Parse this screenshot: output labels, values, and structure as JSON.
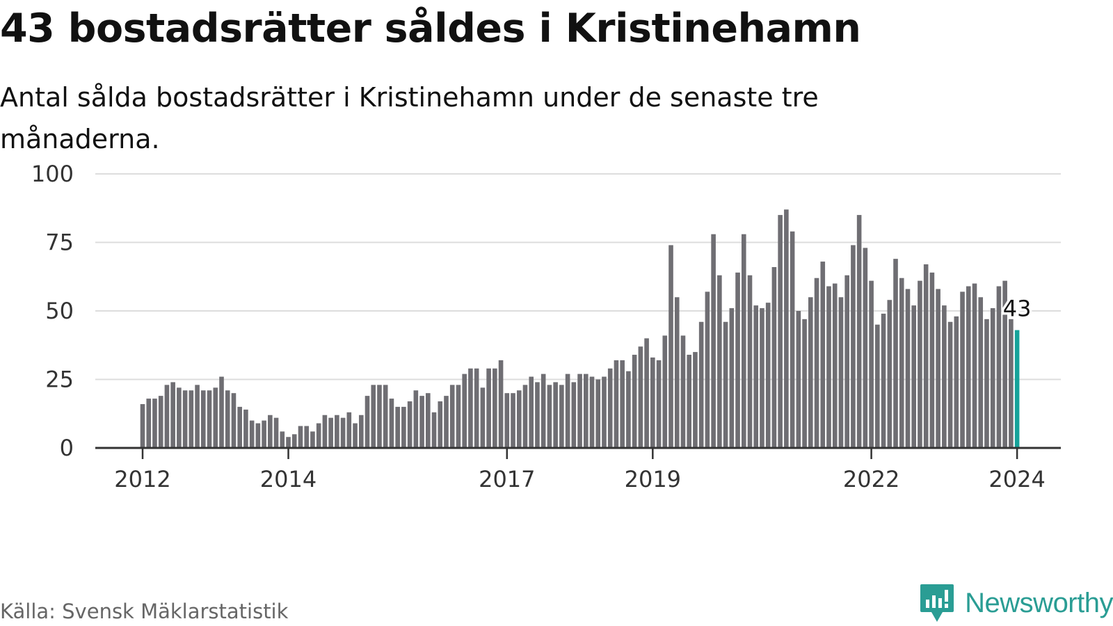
{
  "title": "43 bostadsrätter såldes i Kristinehamn",
  "subtitle": "Antal sålda bostadsrätter i Kristinehamn under de senaste tre månaderna.",
  "source": "Källa: Svensk Mäklarstatistik",
  "brand": {
    "name": "Newsworthy",
    "icon": "newsworthy-logo-icon"
  },
  "colors": {
    "bar": "#6f6e73",
    "highlight": "#16a39a",
    "grid": "#dddddd",
    "axis": "#333333",
    "brand": "#2a9d94"
  },
  "chart_data": {
    "type": "bar",
    "title": "43 bostadsrätter såldes i Kristinehamn",
    "xlabel": "",
    "ylabel": "",
    "ylim": [
      0,
      100
    ],
    "yticks": [
      0,
      25,
      50,
      75,
      100
    ],
    "xticks": [
      "2012",
      "2014",
      "2017",
      "2019",
      "2022",
      "2024"
    ],
    "xtick_index": [
      0,
      24,
      60,
      84,
      120,
      144
    ],
    "highlight": {
      "index": 144,
      "label": "43"
    },
    "values": [
      16,
      18,
      18,
      19,
      23,
      24,
      22,
      21,
      21,
      23,
      21,
      21,
      22,
      26,
      21,
      20,
      15,
      14,
      10,
      9,
      10,
      12,
      11,
      6,
      4,
      5,
      8,
      8,
      6,
      9,
      12,
      11,
      12,
      11,
      13,
      9,
      12,
      19,
      23,
      23,
      23,
      18,
      15,
      15,
      17,
      21,
      19,
      20,
      13,
      17,
      19,
      23,
      23,
      27,
      29,
      29,
      22,
      29,
      29,
      32,
      20,
      20,
      21,
      23,
      26,
      24,
      27,
      23,
      24,
      23,
      27,
      24,
      27,
      27,
      26,
      25,
      26,
      29,
      32,
      32,
      28,
      34,
      37,
      40,
      33,
      32,
      41,
      74,
      55,
      41,
      34,
      35,
      46,
      57,
      78,
      63,
      46,
      51,
      64,
      78,
      63,
      52,
      51,
      53,
      66,
      85,
      87,
      79,
      50,
      47,
      55,
      62,
      68,
      59,
      60,
      55,
      63,
      74,
      85,
      73,
      61,
      45,
      49,
      54,
      69,
      62,
      58,
      52,
      61,
      67,
      64,
      58,
      52,
      46,
      48,
      57,
      59,
      60,
      55,
      47,
      51,
      59,
      61,
      47,
      43
    ]
  }
}
